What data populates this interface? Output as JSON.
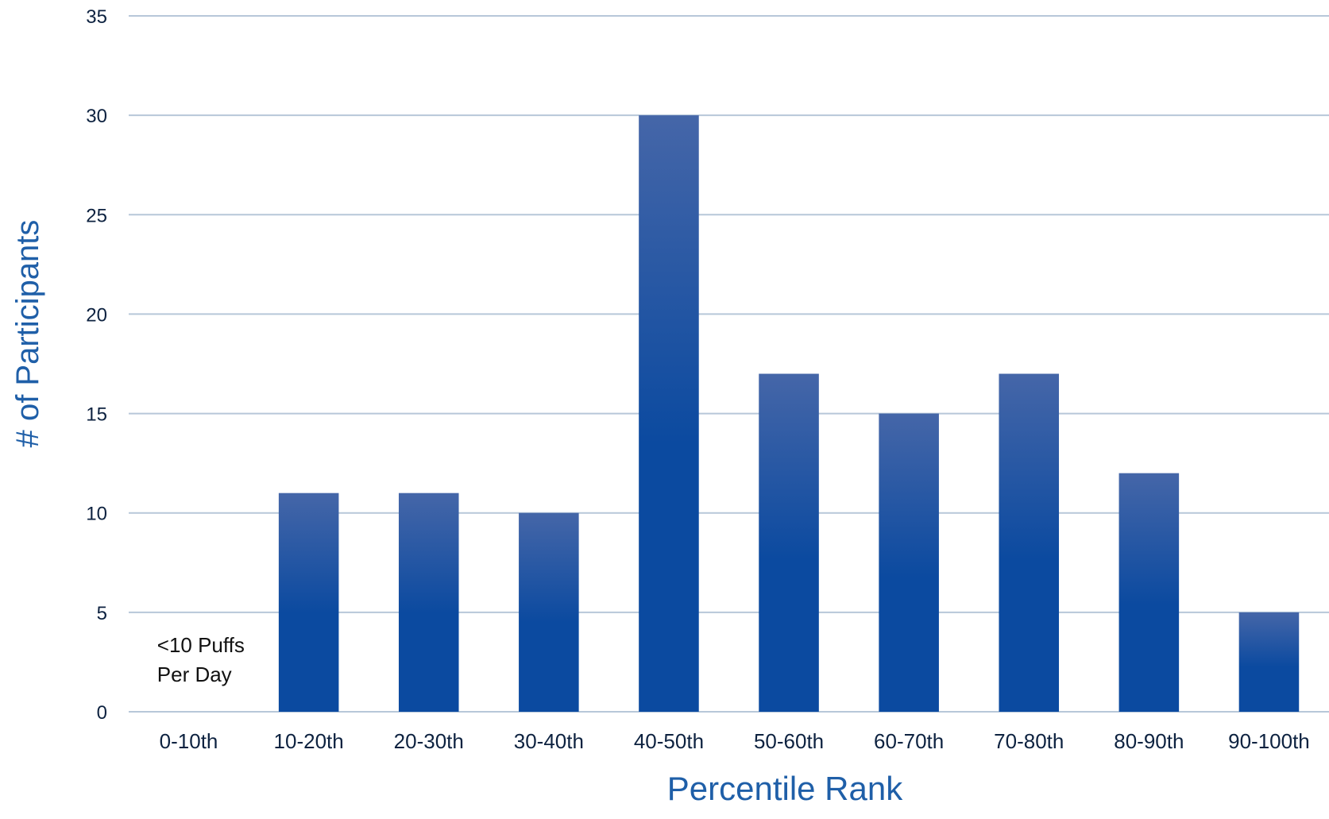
{
  "chart_data": {
    "type": "bar",
    "categories": [
      "0-10th",
      "10-20th",
      "20-30th",
      "30-40th",
      "40-50th",
      "50-60th",
      "60-70th",
      "70-80th",
      "80-90th",
      "90-100th"
    ],
    "values": [
      0,
      11,
      11,
      10,
      30,
      17,
      15,
      17,
      12,
      5
    ],
    "xlabel": "Percentile Rank",
    "ylabel": "# of Participants",
    "ylim": [
      0,
      35
    ],
    "yticks": [
      0,
      5,
      10,
      15,
      20,
      25,
      30,
      35
    ],
    "grid": true,
    "legend": "none",
    "annotations": [
      {
        "category": "0-10th",
        "lines": [
          "<10 Puffs",
          "Per Day"
        ]
      }
    ],
    "colors": {
      "bar_top": "#4566a8",
      "bar_bottom": "#0b4aa0",
      "gridline": "#b7c7d9",
      "axis_title": "#1f5fa8",
      "tick_label": "#0d2240"
    }
  }
}
